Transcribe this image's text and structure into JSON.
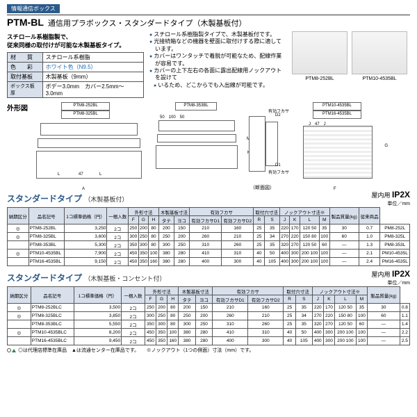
{
  "header": {
    "info_badge": "情報通信ボックス",
    "model": "PTM-BL",
    "model_desc": "通信用プラボックス・スタンダードタイプ（木製基板付）",
    "subtitle_l1": "スチロール系樹脂製で、",
    "subtitle_l2": "従来同様の取付けが可能な木製基板タイプ。",
    "bullets": [
      "スチロール系樹脂製タイプで、木製基板付です。",
      "光接続箱などの機器を壁面に取付けする際に適しています。",
      "カバーはワンタッチで着脱が可能なため、配線作業が容易です。",
      "カバーの上下左右の各面に露出配線用ノックアウトを設けて",
      "いるため、どこからでも入出線が可能です。"
    ]
  },
  "spec": {
    "r1k": "材　　質",
    "r1v": "スチロール系樹脂",
    "r2k": "色　　彩",
    "r2v": "ホワイト色（N9.5）",
    "r3k": "取付基板",
    "r3v": "木製基板（9mm）",
    "r4k": "ボックス板厚",
    "r4v": "ボデー3.0mm　カバー2.5mm～3.0mm"
  },
  "photos": {
    "p1": "PTM8-252BL",
    "p2": "PTM10-4535BL"
  },
  "diagrams": {
    "title": "外形図",
    "g1a": "PTM8-252BL",
    "g1b": "PTM8-325BL",
    "g2": "PTM8-353BL",
    "g3a": "PTM10-4535BL",
    "g3b": "PTM16-4535BL",
    "dan": "（断面図）",
    "d1": "有効フカサ",
    "d1s": "D1",
    "d2": "有効フカサ",
    "d2s": "D2"
  },
  "table1": {
    "title": "スタンダードタイプ",
    "sub": "（木製基板付）",
    "ip_label": "屋内用",
    "ip": "IP2X",
    "unit": "単位／mm",
    "cols": [
      "納期区分",
      "品名記号",
      "1コ標準価格（円）",
      "一梱入数",
      "F",
      "G",
      "H",
      "タテ",
      "ヨコ",
      "有効フカサD1",
      "有効フカサD2",
      "R",
      "S",
      "J",
      "K",
      "L",
      "M",
      "製品質量(kg)",
      "従来商品"
    ],
    "grp_out": "外形寸法",
    "grp_wood": "木製基板寸法",
    "grp_fuk": "有効フカサ",
    "grp_tp": "取付穴寸法",
    "grp_ko": "ノックアウト寸法※",
    "rows": [
      [
        "◎",
        "PTM8-252BL",
        "3,250",
        "2コ",
        "250",
        "200",
        "80",
        "200",
        "150",
        "210",
        "160",
        "25",
        "35",
        "220",
        "170",
        "120 50",
        "35",
        "30",
        "0.7",
        "PM8-252L"
      ],
      [
        "◎",
        "PTM8-325BL",
        "3,600",
        "2コ",
        "300",
        "250",
        "80",
        "250",
        "200",
        "260",
        "210",
        "25",
        "34",
        "270",
        "220",
        "150 80",
        "100",
        "60",
        "1.0",
        "PM8-325L"
      ],
      [
        "",
        "PTM8-353BL",
        "5,300",
        "2コ",
        "350",
        "300",
        "80",
        "300",
        "250",
        "310",
        "260",
        "25",
        "35",
        "320",
        "270",
        "120 50",
        "60",
        "—",
        "1.3",
        "PM8-353L"
      ],
      [
        "◎",
        "PTM10-4535BL",
        "7,900",
        "2コ",
        "450",
        "350",
        "100",
        "380",
        "280",
        "410",
        "310",
        "40",
        "50",
        "400",
        "300",
        "200 100",
        "100",
        "—",
        "2.1",
        "PM10-4535L"
      ],
      [
        "",
        "PTM16-4535BL",
        "9,150",
        "2コ",
        "450",
        "350",
        "160",
        "380",
        "280",
        "400",
        "300",
        "40",
        "105",
        "400",
        "300",
        "200 100",
        "100",
        "—",
        "2.4",
        "PM16-4535L"
      ]
    ]
  },
  "table2": {
    "title": "スタンダードタイプ",
    "sub": "（木製基板・コンセント付）",
    "ip_label": "屋内用",
    "ip": "IP2X",
    "unit": "単位／mm",
    "rows": [
      [
        "◎",
        "PTM8-252BLC",
        "3,500",
        "2コ",
        "250",
        "200",
        "80",
        "200",
        "150",
        "210",
        "160",
        "25",
        "35",
        "220",
        "170",
        "120 50",
        "35",
        "30",
        "0.8"
      ],
      [
        "◎",
        "PTM8-325BLC",
        "3,850",
        "2コ",
        "300",
        "250",
        "80",
        "250",
        "200",
        "260",
        "210",
        "25",
        "34",
        "270",
        "220",
        "150 80",
        "100",
        "60",
        "1.1"
      ],
      [
        "",
        "PTM8-353BLC",
        "5,550",
        "2コ",
        "350",
        "300",
        "80",
        "300",
        "250",
        "310",
        "260",
        "25",
        "35",
        "320",
        "270",
        "120 50",
        "60",
        "—",
        "1.4"
      ],
      [
        "◎",
        "PTM10-4535BLC",
        "8,200",
        "2コ",
        "450",
        "350",
        "100",
        "380",
        "280",
        "410",
        "310",
        "40",
        "50",
        "400",
        "300",
        "200 100",
        "100",
        "—",
        "2.2"
      ],
      [
        "",
        "PTM16-4535BLC",
        "9,450",
        "2コ",
        "450",
        "350",
        "160",
        "380",
        "280",
        "400",
        "300",
        "40",
        "105",
        "400",
        "300",
        "200 100",
        "100",
        "—",
        "2.5"
      ]
    ]
  },
  "footnote": "◎は代理店標準在庫品　▲は流通センター在庫品です。　　※ノックアウト（1つの側面）寸法（mm）です。"
}
